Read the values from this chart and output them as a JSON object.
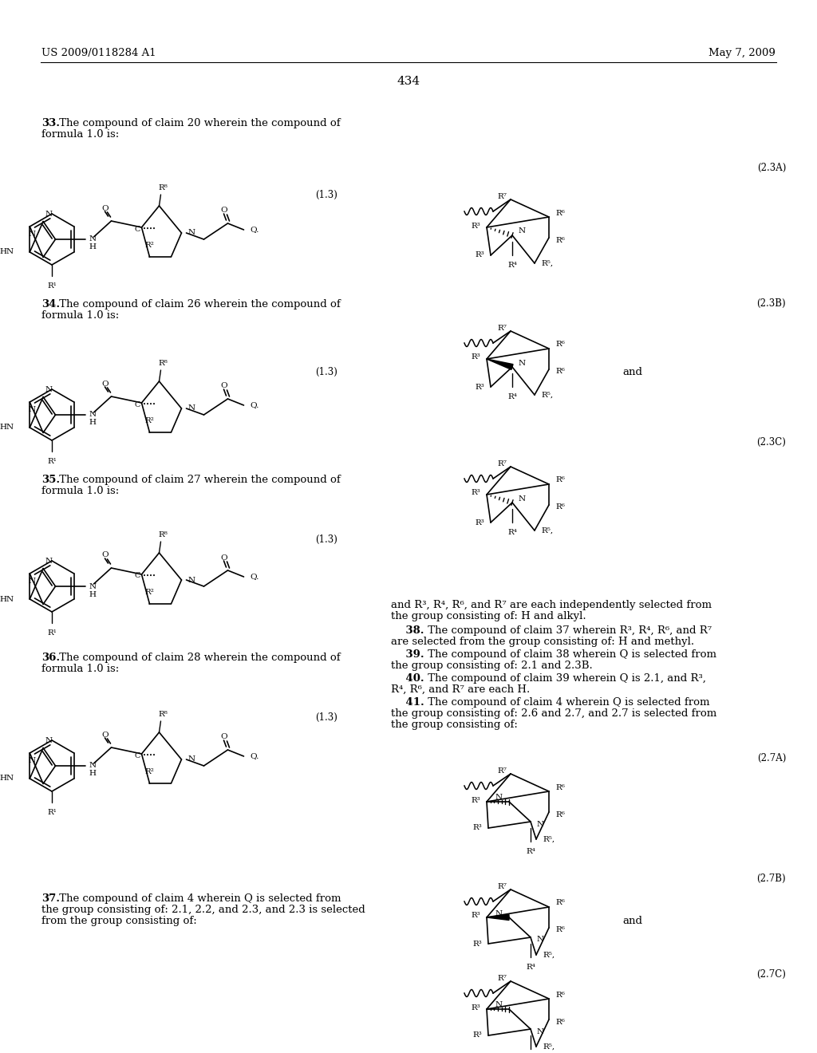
{
  "background_color": "#ffffff",
  "page_number": "434",
  "header_left": "US 2009/0118284 A1",
  "header_right": "May 7, 2009",
  "figsize": [
    10.24,
    13.2
  ],
  "dpi": 100
}
